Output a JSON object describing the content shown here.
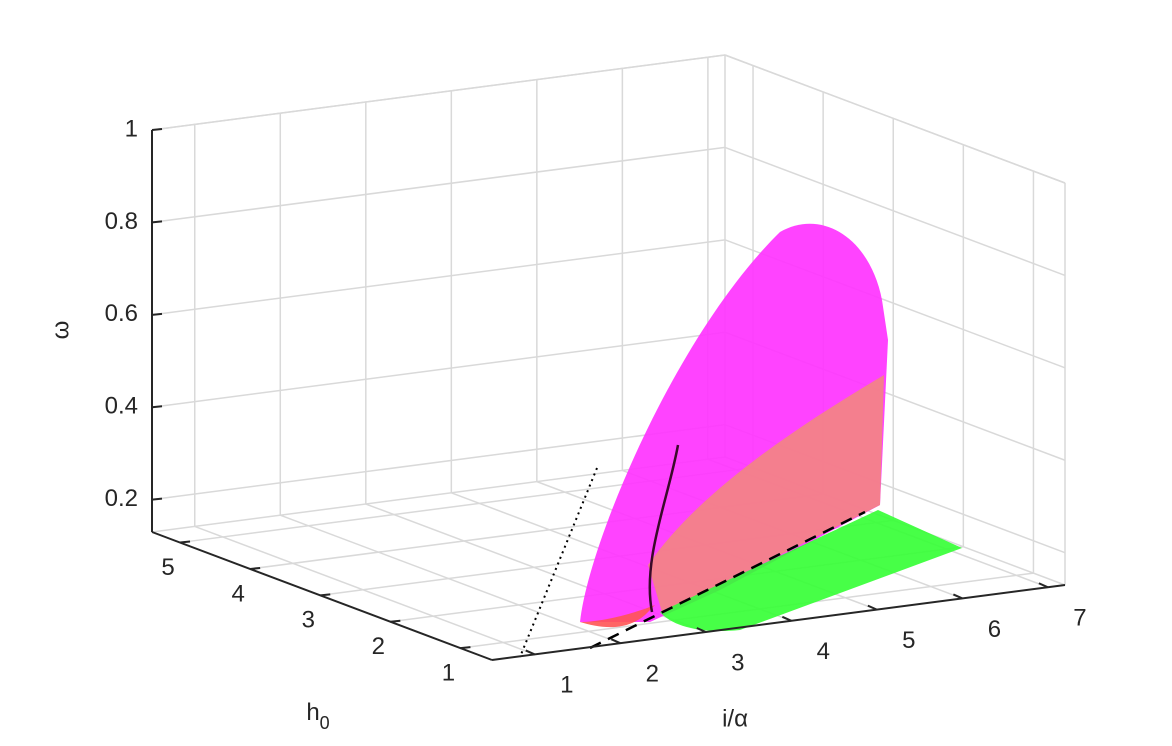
{
  "chart_data": {
    "type": "surface3d",
    "xlabel": "i/α",
    "ylabel": "h",
    "ylabel_subscript": "0",
    "zlabel": "ω",
    "xlim": [
      0.5,
      7.2
    ],
    "xticks": [
      1,
      2,
      3,
      4,
      5,
      6,
      7
    ],
    "ylim": [
      0.55,
      5.4
    ],
    "yticks": [
      1,
      2,
      3,
      4,
      5
    ],
    "zlim": [
      0.13,
      1
    ],
    "zticks": [
      0.2,
      0.4,
      0.6,
      0.8,
      1
    ],
    "grid": true
  }
}
